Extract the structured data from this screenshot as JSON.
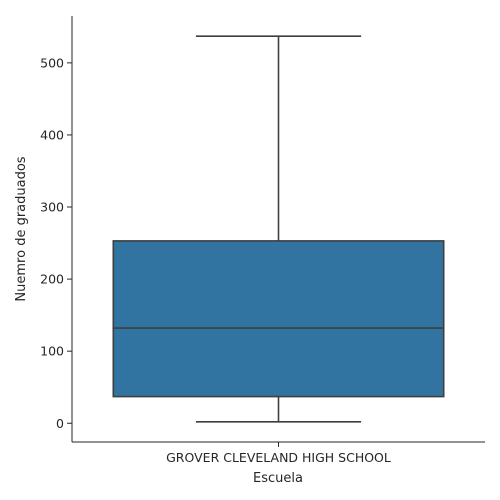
{
  "chart_data": {
    "type": "box",
    "title": "",
    "xlabel": "Escuela",
    "ylabel": "Nuemro de graduados",
    "categories": [
      "GROVER CLEVELAND HIGH SCHOOL"
    ],
    "boxes": [
      {
        "category": "GROVER CLEVELAND HIGH SCHOOL",
        "whisker_low": 2,
        "q1": 37,
        "median": 132,
        "q3": 253,
        "whisker_high": 537
      }
    ],
    "yticks": [
      0,
      100,
      200,
      300,
      400,
      500
    ],
    "ylim": [
      -26,
      565
    ],
    "grid": false,
    "box_color": "#3274a1",
    "line_color": "#3f3f3f"
  }
}
